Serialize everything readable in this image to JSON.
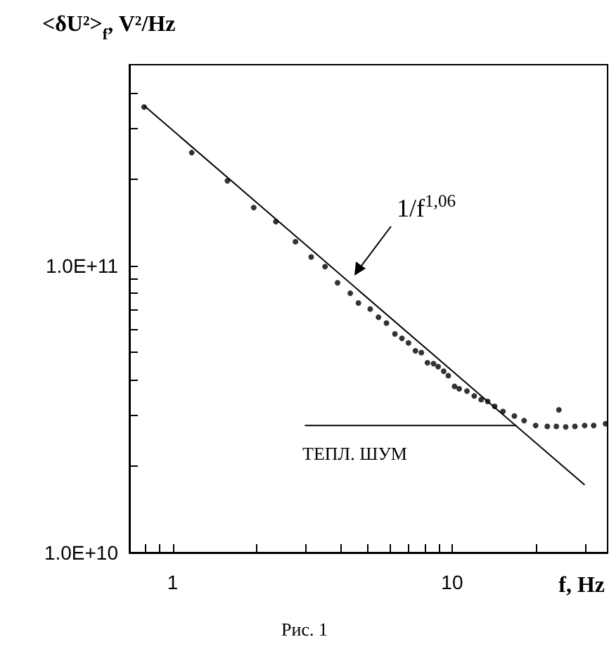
{
  "chart_data": {
    "type": "scatter",
    "xlabel": "f, Hz",
    "ylabel": "<δU²>$_{f}$, V²/Hz",
    "annotations": [
      "1/f$^{1,06}$",
      "ТЕПЛ. ШУМ",
      "Рис. 1"
    ],
    "xlim": [
      0.7,
      36
    ],
    "ylim": [
      10000000000.0,
      500000000000.0
    ],
    "xticks": [
      {
        "value": 0.8,
        "label": null
      },
      {
        "value": 0.9,
        "label": null
      },
      1,
      {
        "value": 2,
        "label": null
      },
      {
        "value": 3,
        "label": null
      },
      {
        "value": 4,
        "label": null
      },
      {
        "value": 5,
        "label": null
      },
      {
        "value": 6,
        "label": null
      },
      {
        "value": 7,
        "label": null
      },
      {
        "value": 8,
        "label": null
      },
      {
        "value": 9,
        "label": null
      },
      10,
      {
        "value": 20,
        "label": null
      },
      {
        "value": 30,
        "label": null
      }
    ],
    "yticks": [
      {
        "value": 10000000000.0,
        "label": "1.0E+10"
      },
      {
        "value": 20000000000.0,
        "label": null
      },
      {
        "value": 30000000000.0,
        "label": null
      },
      {
        "value": 40000000000.0,
        "label": null
      },
      {
        "value": 50000000000.0,
        "label": null
      },
      {
        "value": 60000000000.0,
        "label": null
      },
      {
        "value": 70000000000.0,
        "label": null
      },
      {
        "value": 80000000000.0,
        "label": null
      },
      {
        "value": 90000000000.0,
        "label": null
      },
      {
        "value": 100000000000.0,
        "label": "1.0E+11"
      },
      {
        "value": 200000000000.0,
        "label": null
      },
      {
        "value": 300000000000.0,
        "label": null
      },
      {
        "value": 400000000000.0,
        "label": null
      }
    ],
    "log": "xy",
    "grid": false,
    "line_style": "solid",
    "series": [
      {
        "color": "#000000",
        "marker": "circle",
        "x": [
          0.79,
          1.17,
          1.57,
          1.95,
          2.34,
          2.75,
          3.13,
          3.51,
          3.89,
          4.32,
          4.62,
          5.09,
          5.45,
          5.82,
          6.24,
          6.61,
          6.98,
          7.39,
          7.76,
          8.16,
          8.58,
          8.91,
          9.33,
          9.69,
          10.2,
          10.6,
          11.3,
          12.0,
          12.7,
          13.4,
          14.2,
          15.2,
          16.7,
          18.1,
          19.9,
          21.9,
          23.6,
          24.1,
          25.5,
          27.5,
          29.8,
          32.1,
          35.4
        ],
        "values": [
          356000000000.0,
          247000000000.0,
          197000000000.0,
          159000000000.0,
          142000000000.0,
          121000000000.0,
          107000000000.0,
          99000000000.0,
          87000000000.0,
          80000000000.0,
          74000000000.0,
          70500000000.0,
          66000000000.0,
          63000000000.0,
          57700000000.0,
          55700000000.0,
          53700000000.0,
          50400000000.0,
          49700000000.0,
          45800000000.0,
          45500000000.0,
          44400000000.0,
          42800000000.0,
          41300000000.0,
          37900000000.0,
          37200000000.0,
          36500000000.0,
          35100000000.0,
          34100000000.0,
          33600000000.0,
          32300000000.0,
          31000000000.0,
          29900000000.0,
          28800000000.0,
          27700000000.0,
          27500000000.0,
          27500000000.0,
          31400000000.0,
          27400000000.0,
          27500000000.0,
          27700000000.0,
          27700000000.0,
          28100000000.0
        ]
      },
      {
        "type": "line",
        "marker": "none",
        "color": "#000000",
        "x": [
          0.79,
          29.8
        ],
        "values": [
          360000000000.0,
          17200000000.0
        ]
      },
      {
        "type": "line",
        "marker": "none",
        "color": "#000000",
        "x": [
          2.97,
          17
        ],
        "values": [
          27700000000.0,
          27700000000.0
        ]
      }
    ]
  }
}
